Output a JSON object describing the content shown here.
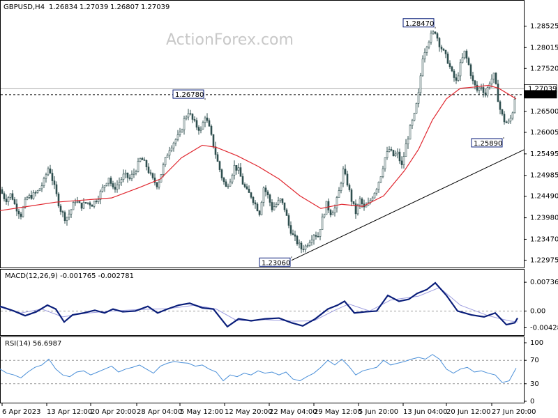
{
  "symbol_label": "GBPUSD,H4",
  "ohlc": [
    "1.26834",
    "1.27039",
    "1.26807",
    "1.27039"
  ],
  "watermark": "ActionForex.com",
  "colors": {
    "candle": "#2f4f4f",
    "ma": "#e0262e",
    "trendline": "#000000",
    "macd_line": "#0a1e7a",
    "macd_signal": "#9e9ee0",
    "rsi": "#4a8fd8",
    "grid_dash": "#9a9a9a",
    "label_box": "#0a1e7a"
  },
  "chart_data": [
    {
      "type": "candlestick",
      "ylim": [
        1.2285,
        1.2878
      ],
      "y_ticks": [
        "1.28525",
        "1.28015",
        "1.27520",
        "1.27039",
        "1.26900",
        "1.26500",
        "1.26005",
        "1.25495",
        "1.24985",
        "1.24490",
        "1.23980",
        "1.23470",
        "1.22975"
      ],
      "x_labels": [
        "6 Apr 2023",
        "13 Apr 12:00",
        "20 Apr 20:00",
        "28 Apr 04:00",
        "5 May 12:00",
        "12 May 20:00",
        "22 May 04:00",
        "29 May 12:00",
        "5 Jun 20:00",
        "13 Jun 04:00",
        "20 Jun 12:00",
        "27 Jun 20:00"
      ],
      "price_path": [
        [
          0,
          1.2465
        ],
        [
          8,
          1.244
        ],
        [
          16,
          1.2455
        ],
        [
          22,
          1.2425
        ],
        [
          30,
          1.2405
        ],
        [
          38,
          1.2445
        ],
        [
          46,
          1.245
        ],
        [
          54,
          1.246
        ],
        [
          62,
          1.248
        ],
        [
          70,
          1.252
        ],
        [
          78,
          1.247
        ],
        [
          86,
          1.242
        ],
        [
          94,
          1.2395
        ],
        [
          100,
          1.241
        ],
        [
          108,
          1.244
        ],
        [
          116,
          1.2425
        ],
        [
          124,
          1.2435
        ],
        [
          132,
          1.243
        ],
        [
          140,
          1.2445
        ],
        [
          148,
          1.247
        ],
        [
          156,
          1.2495
        ],
        [
          162,
          1.2465
        ],
        [
          170,
          1.248
        ],
        [
          178,
          1.25
        ],
        [
          186,
          1.249
        ],
        [
          194,
          1.251
        ],
        [
          202,
          1.254
        ],
        [
          210,
          1.252
        ],
        [
          218,
          1.249
        ],
        [
          226,
          1.2475
        ],
        [
          234,
          1.252
        ],
        [
          242,
          1.256
        ],
        [
          250,
          1.258
        ],
        [
          258,
          1.2595
        ],
        [
          264,
          1.263
        ],
        [
          270,
          1.265
        ],
        [
          276,
          1.263
        ],
        [
          282,
          1.2615
        ],
        [
          288,
          1.2605
        ],
        [
          294,
          1.264
        ],
        [
          300,
          1.261
        ],
        [
          306,
          1.257
        ],
        [
          312,
          1.253
        ],
        [
          318,
          1.2495
        ],
        [
          324,
          1.247
        ],
        [
          330,
          1.249
        ],
        [
          336,
          1.252
        ],
        [
          342,
          1.251
        ],
        [
          348,
          1.248
        ],
        [
          354,
          1.246
        ],
        [
          360,
          1.245
        ],
        [
          366,
          1.243
        ],
        [
          372,
          1.241
        ],
        [
          378,
          1.247
        ],
        [
          384,
          1.245
        ],
        [
          390,
          1.242
        ],
        [
          396,
          1.243
        ],
        [
          402,
          1.244
        ],
        [
          408,
          1.242
        ],
        [
          414,
          1.238
        ],
        [
          420,
          1.2355
        ],
        [
          426,
          1.234
        ],
        [
          432,
          1.2325
        ],
        [
          438,
          1.233
        ],
        [
          444,
          1.2345
        ],
        [
          450,
          1.236
        ],
        [
          456,
          1.2355
        ],
        [
          462,
          1.2395
        ],
        [
          468,
          1.243
        ],
        [
          474,
          1.241
        ],
        [
          480,
          1.242
        ],
        [
          486,
          1.246
        ],
        [
          492,
          1.251
        ],
        [
          498,
          1.248
        ],
        [
          504,
          1.244
        ],
        [
          510,
          1.241
        ],
        [
          516,
          1.244
        ],
        [
          522,
          1.242
        ],
        [
          528,
          1.243
        ],
        [
          534,
          1.245
        ],
        [
          540,
          1.247
        ],
        [
          546,
          1.25
        ],
        [
          552,
          1.254
        ],
        [
          558,
          1.256
        ],
        [
          564,
          1.2545
        ],
        [
          570,
          1.255
        ],
        [
          576,
          1.252
        ],
        [
          582,
          1.257
        ],
        [
          588,
          1.261
        ],
        [
          594,
          1.264
        ],
        [
          600,
          1.269
        ],
        [
          606,
          1.278
        ],
        [
          612,
          1.281
        ],
        [
          618,
          1.283
        ],
        [
          624,
          1.284
        ],
        [
          630,
          1.281
        ],
        [
          636,
          1.279
        ],
        [
          642,
          1.277
        ],
        [
          648,
          1.274
        ],
        [
          654,
          1.272
        ],
        [
          660,
          1.276
        ],
        [
          666,
          1.279
        ],
        [
          672,
          1.276
        ],
        [
          678,
          1.272
        ],
        [
          684,
          1.27
        ],
        [
          690,
          1.271
        ],
        [
          696,
          1.269
        ],
        [
          702,
          1.272
        ],
        [
          708,
          1.2735
        ],
        [
          712,
          1.27
        ],
        [
          716,
          1.266
        ],
        [
          722,
          1.263
        ],
        [
          728,
          1.262
        ],
        [
          734,
          1.264
        ],
        [
          740,
          1.2704
        ]
      ],
      "ma_path": [
        [
          0,
          1.2415
        ],
        [
          40,
          1.2425
        ],
        [
          80,
          1.2435
        ],
        [
          120,
          1.244
        ],
        [
          160,
          1.2445
        ],
        [
          200,
          1.247
        ],
        [
          230,
          1.249
        ],
        [
          260,
          1.254
        ],
        [
          290,
          1.257
        ],
        [
          310,
          1.2565
        ],
        [
          340,
          1.2545
        ],
        [
          370,
          1.252
        ],
        [
          400,
          1.249
        ],
        [
          430,
          1.245
        ],
        [
          460,
          1.242
        ],
        [
          490,
          1.243
        ],
        [
          520,
          1.2425
        ],
        [
          550,
          1.245
        ],
        [
          580,
          1.251
        ],
        [
          600,
          1.256
        ],
        [
          620,
          1.263
        ],
        [
          640,
          1.268
        ],
        [
          660,
          1.2705
        ],
        [
          680,
          1.2708
        ],
        [
          700,
          1.2712
        ],
        [
          715,
          1.2705
        ],
        [
          730,
          1.269
        ],
        [
          740,
          1.268
        ]
      ],
      "trendline": [
        [
          418,
          1.2297
        ],
        [
          752,
          1.256
        ]
      ],
      "horizontal_levels": [
        1.27039,
        1.269
      ],
      "annotations": [
        {
          "label": "1.28470",
          "x": 624,
          "y": 1.2847
        },
        {
          "label": "1.26780",
          "x": 294,
          "y": 1.2678
        },
        {
          "label": "1.23060",
          "x": 418,
          "y": 1.2306
        },
        {
          "label": "1.25890",
          "x": 722,
          "y": 1.2589
        }
      ],
      "current_price_label": "1.27039",
      "level_label": "1.26900"
    },
    {
      "type": "line",
      "title": "MACD(12,26,9) -0.001765 -0.002781",
      "ylim": [
        -0.0058,
        0.0081
      ],
      "y_ticks": [
        "0.007366",
        "0.00",
        "-0.004286"
      ],
      "series": [
        {
          "name": "MACD",
          "values": [
            [
              0,
              0.0012
            ],
            [
              20,
              0.0
            ],
            [
              36,
              -0.0012
            ],
            [
              52,
              -0.0002
            ],
            [
              68,
              0.0015
            ],
            [
              80,
              0.0005
            ],
            [
              92,
              -0.0028
            ],
            [
              104,
              -0.001
            ],
            [
              120,
              -0.0005
            ],
            [
              136,
              0.0002
            ],
            [
              150,
              -0.0005
            ],
            [
              162,
              0.0005
            ],
            [
              176,
              -0.0002
            ],
            [
              194,
              0.0
            ],
            [
              212,
              0.0012
            ],
            [
              226,
              -0.0005
            ],
            [
              240,
              0.0005
            ],
            [
              256,
              0.0015
            ],
            [
              272,
              0.002
            ],
            [
              290,
              0.0008
            ],
            [
              306,
              0.0005
            ],
            [
              326,
              -0.004
            ],
            [
              342,
              -0.002
            ],
            [
              360,
              -0.0025
            ],
            [
              380,
              -0.002
            ],
            [
              400,
              -0.0018
            ],
            [
              418,
              -0.003
            ],
            [
              434,
              -0.0038
            ],
            [
              452,
              -0.002
            ],
            [
              470,
              0.0005
            ],
            [
              484,
              0.0015
            ],
            [
              494,
              0.0025
            ],
            [
              508,
              -0.0005
            ],
            [
              524,
              -0.0002
            ],
            [
              540,
              0.0
            ],
            [
              556,
              0.004
            ],
            [
              572,
              0.0025
            ],
            [
              586,
              0.003
            ],
            [
              598,
              0.0045
            ],
            [
              612,
              0.0055
            ],
            [
              624,
              0.0072
            ],
            [
              640,
              0.004
            ],
            [
              656,
              0.0
            ],
            [
              676,
              -0.001
            ],
            [
              694,
              -0.0015
            ],
            [
              710,
              -0.0005
            ],
            [
              726,
              -0.0035
            ],
            [
              738,
              -0.003
            ],
            [
              742,
              -0.0018
            ]
          ]
        },
        {
          "name": "Signal",
          "values": [
            [
              0,
              0.001
            ],
            [
              30,
              -0.0005
            ],
            [
              60,
              0.0005
            ],
            [
              90,
              -0.0015
            ],
            [
              120,
              -0.0006
            ],
            [
              160,
              0.0
            ],
            [
              200,
              0.0004
            ],
            [
              240,
              0.0006
            ],
            [
              280,
              0.0015
            ],
            [
              310,
              0.0005
            ],
            [
              340,
              -0.0025
            ],
            [
              380,
              -0.0022
            ],
            [
              420,
              -0.0026
            ],
            [
              450,
              -0.0025
            ],
            [
              480,
              0.0002
            ],
            [
              500,
              0.0018
            ],
            [
              530,
              0.0
            ],
            [
              560,
              0.0028
            ],
            [
              600,
              0.0038
            ],
            [
              630,
              0.006
            ],
            [
              660,
              0.0015
            ],
            [
              700,
              -0.0012
            ],
            [
              730,
              -0.0025
            ],
            [
              742,
              -0.0028
            ]
          ]
        }
      ]
    },
    {
      "type": "line",
      "title": "RSI(14) 56.6987",
      "ylim": [
        0,
        100
      ],
      "y_ticks": [
        "100",
        "70",
        "30",
        "0"
      ],
      "reference_lines": [
        70,
        30
      ],
      "series": [
        {
          "name": "RSI",
          "values": [
            [
              0,
              55
            ],
            [
              10,
              48
            ],
            [
              20,
              45
            ],
            [
              30,
              40
            ],
            [
              40,
              50
            ],
            [
              50,
              58
            ],
            [
              60,
              62
            ],
            [
              70,
              72
            ],
            [
              80,
              55
            ],
            [
              90,
              45
            ],
            [
              100,
              42
            ],
            [
              110,
              50
            ],
            [
              120,
              52
            ],
            [
              130,
              45
            ],
            [
              140,
              50
            ],
            [
              150,
              55
            ],
            [
              160,
              60
            ],
            [
              170,
              50
            ],
            [
              180,
              55
            ],
            [
              190,
              58
            ],
            [
              200,
              62
            ],
            [
              210,
              55
            ],
            [
              220,
              48
            ],
            [
              230,
              60
            ],
            [
              240,
              65
            ],
            [
              250,
              68
            ],
            [
              260,
              66
            ],
            [
              270,
              65
            ],
            [
              280,
              60
            ],
            [
              290,
              62
            ],
            [
              300,
              55
            ],
            [
              310,
              50
            ],
            [
              320,
              35
            ],
            [
              330,
              45
            ],
            [
              340,
              42
            ],
            [
              350,
              48
            ],
            [
              360,
              45
            ],
            [
              370,
              52
            ],
            [
              380,
              48
            ],
            [
              390,
              50
            ],
            [
              400,
              45
            ],
            [
              410,
              50
            ],
            [
              420,
              38
            ],
            [
              430,
              35
            ],
            [
              440,
              42
            ],
            [
              450,
              48
            ],
            [
              460,
              58
            ],
            [
              470,
              70
            ],
            [
              480,
              62
            ],
            [
              490,
              72
            ],
            [
              500,
              60
            ],
            [
              510,
              45
            ],
            [
              520,
              52
            ],
            [
              530,
              55
            ],
            [
              540,
              58
            ],
            [
              550,
              70
            ],
            [
              560,
              62
            ],
            [
              570,
              65
            ],
            [
              580,
              68
            ],
            [
              590,
              72
            ],
            [
              600,
              75
            ],
            [
              610,
              72
            ],
            [
              620,
              80
            ],
            [
              630,
              72
            ],
            [
              640,
              55
            ],
            [
              650,
              48
            ],
            [
              660,
              55
            ],
            [
              670,
              58
            ],
            [
              680,
              50
            ],
            [
              690,
              52
            ],
            [
              700,
              48
            ],
            [
              710,
              45
            ],
            [
              720,
              32
            ],
            [
              730,
              35
            ],
            [
              740,
              56.7
            ]
          ]
        }
      ]
    }
  ]
}
